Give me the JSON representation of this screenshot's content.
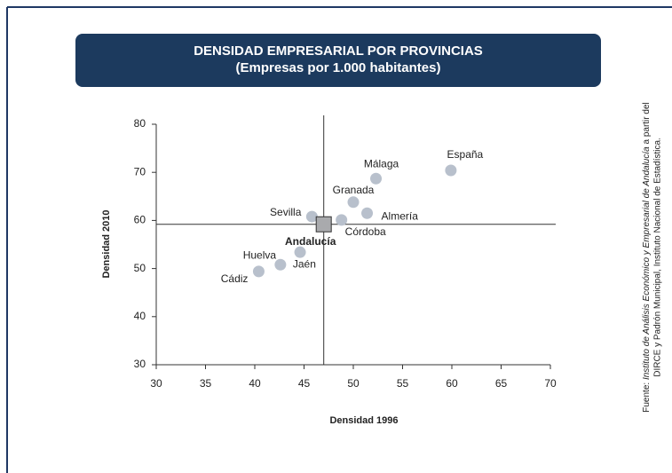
{
  "chart_data": {
    "type": "scatter",
    "title": "DENSIDAD EMPRESARIAL POR PROVINCIAS",
    "subtitle": "(Empresas por 1.000 habitantes)",
    "x_label": "Densidad 1996",
    "y_label": "Densidad 2010",
    "labels": [
      "España",
      "Málaga",
      "Granada",
      "Almería",
      "Córdoba",
      "Sevilla",
      "Huelva",
      "Jaén",
      "Cádiz"
    ],
    "x": [
      59.9,
      52.3,
      50.0,
      51.4,
      48.8,
      45.8,
      44.6,
      42.6,
      40.4
    ],
    "values": [
      70.4,
      68.7,
      63.8,
      61.5,
      60.1,
      60.8,
      53.4,
      50.8,
      49.4
    ],
    "color": "#b8c0cc",
    "highlight": {
      "label": "Andalucía",
      "x": 47.0,
      "y": 59.2,
      "color": "#a9aaad"
    },
    "xlim": [
      30,
      70
    ],
    "ylim": [
      30,
      80
    ],
    "xticks": [
      30,
      35,
      40,
      45,
      50,
      55,
      60,
      65,
      70
    ],
    "yticks": [
      30,
      40,
      50,
      60,
      70,
      80
    ],
    "source": {
      "prefix": "Fuente: ",
      "italic": "Instituto de Análisis Económico y Empresarial de Andalucía",
      "suffix": " a partir del",
      "line2": "DIRCE y Padrón Municipal, Instituto Nacional de Estadística."
    }
  }
}
